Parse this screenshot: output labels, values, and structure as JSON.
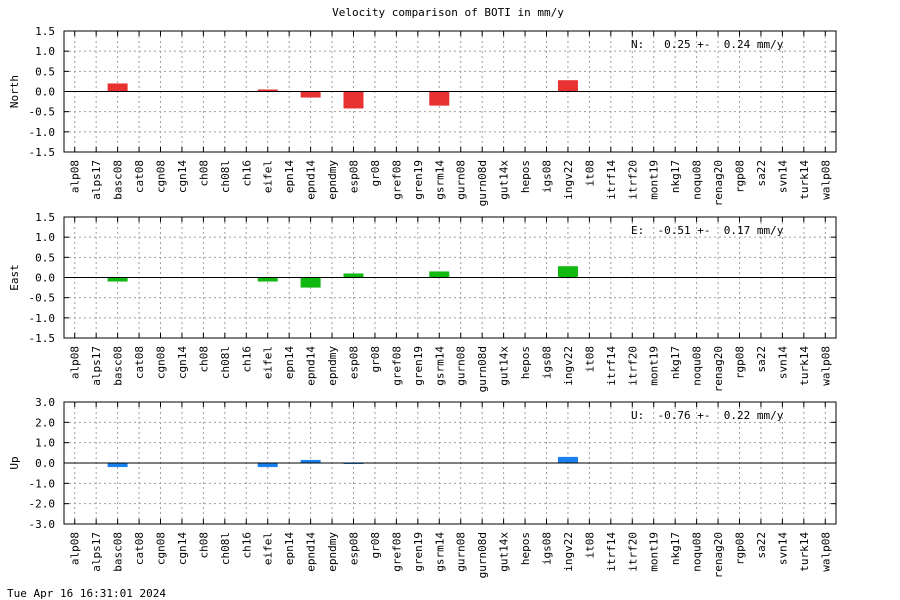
{
  "timestamp": "Tue Apr 16 16:31:01 2024",
  "chart_data": {
    "type": "bar",
    "title": "Velocity comparison of BOTI in mm/y",
    "categories": [
      "alp08",
      "alps17",
      "basc08",
      "cat08",
      "cgn08",
      "cgn14",
      "ch08",
      "ch08l",
      "ch16",
      "eifel",
      "epn14",
      "epnd14",
      "epndmy",
      "esp08",
      "gr08",
      "gref08",
      "gren19",
      "gsrm14",
      "gurn08",
      "gurn08d",
      "gut14x",
      "hepos",
      "igs08",
      "ingv22",
      "it08",
      "itrf14",
      "itrf20",
      "mont19",
      "nkg17",
      "noqu08",
      "renag20",
      "rgp08",
      "sa22",
      "svn14",
      "turk14",
      "walp08"
    ],
    "panels": [
      {
        "ylabel": "North",
        "color": "#e83232",
        "ylim": [
          -1.5,
          1.5
        ],
        "yticks": [
          "1.5",
          "1.0",
          "0.5",
          "0.0",
          "-0.5",
          "-1.0",
          "-1.5"
        ],
        "stat": "N:   0.25 +-  0.24 mm/y",
        "values": [
          null,
          null,
          0.2,
          null,
          null,
          null,
          null,
          null,
          null,
          0.05,
          null,
          -0.15,
          null,
          -0.42,
          null,
          null,
          null,
          -0.35,
          null,
          null,
          null,
          null,
          null,
          0.28,
          null,
          null,
          null,
          null,
          null,
          null,
          null,
          null,
          null,
          null,
          null,
          null
        ]
      },
      {
        "ylabel": "East",
        "color": "#10b810",
        "ylim": [
          -1.5,
          1.5
        ],
        "yticks": [
          "1.5",
          "1.0",
          "0.5",
          "0.0",
          "-0.5",
          "-1.0",
          "-1.5"
        ],
        "stat": "E:  -0.51 +-  0.17 mm/y",
        "values": [
          null,
          null,
          -0.1,
          null,
          null,
          null,
          null,
          null,
          null,
          -0.1,
          null,
          -0.25,
          null,
          0.1,
          null,
          null,
          null,
          0.15,
          null,
          null,
          null,
          null,
          null,
          0.28,
          null,
          null,
          null,
          null,
          null,
          null,
          null,
          null,
          null,
          null,
          null,
          null
        ]
      },
      {
        "ylabel": "Up",
        "color": "#1a80f0",
        "ylim": [
          -3.0,
          3.0
        ],
        "yticks": [
          "3.0",
          "2.0",
          "1.0",
          "0.0",
          "-1.0",
          "-2.0",
          "-3.0"
        ],
        "stat": "U:  -0.76 +-  0.22 mm/y",
        "values": [
          null,
          null,
          -0.2,
          null,
          null,
          null,
          null,
          null,
          null,
          -0.2,
          null,
          0.15,
          null,
          -0.05,
          null,
          null,
          null,
          null,
          null,
          null,
          null,
          null,
          null,
          0.3,
          null,
          null,
          null,
          null,
          null,
          null,
          null,
          null,
          null,
          null,
          null,
          null
        ]
      }
    ]
  }
}
